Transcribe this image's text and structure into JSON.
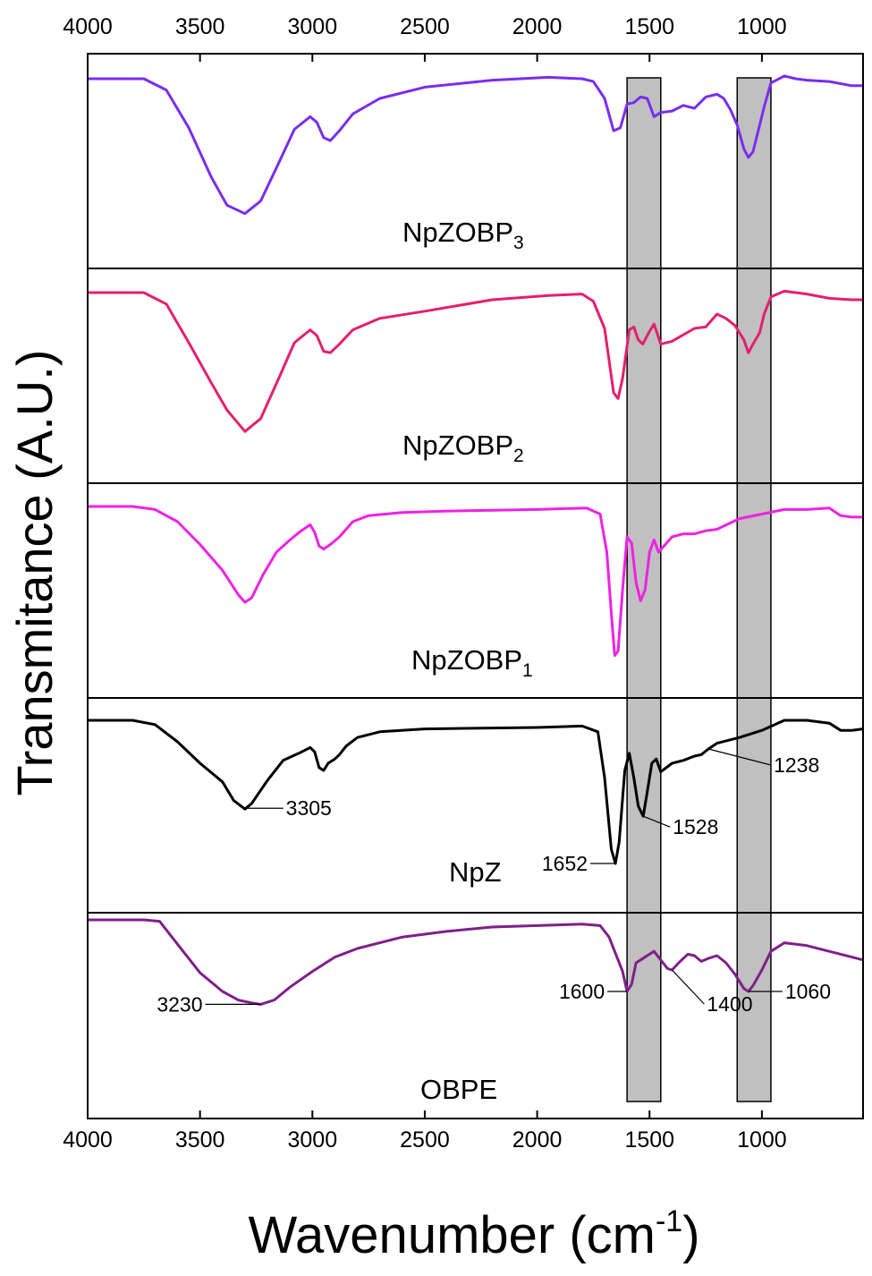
{
  "chart_data": {
    "type": "line",
    "title": "",
    "xlabel": "Wavenumber (cm",
    "xlabel_sup": "-1",
    "xlabel_close": ")",
    "ylabel": "Transmitance (A.U.)",
    "xlim": [
      4000,
      550
    ],
    "x_ticks": [
      4000,
      3500,
      3000,
      2500,
      2000,
      1500,
      1000
    ],
    "tick_labels": [
      "4000",
      "3500",
      "3000",
      "2500",
      "2000",
      "1500",
      "1000"
    ],
    "highlight_bands": [
      {
        "from": 1600,
        "to": 1450
      },
      {
        "from": 1110,
        "to": 960
      }
    ],
    "series": [
      {
        "name": "NpZOBP3",
        "label_main": "NpZOBP",
        "label_sub": "3",
        "color": "#7b2cf0",
        "points": [
          [
            4000,
            0.0
          ],
          [
            3750,
            0.0
          ],
          [
            3650,
            0.08
          ],
          [
            3550,
            0.35
          ],
          [
            3450,
            0.7
          ],
          [
            3380,
            0.9
          ],
          [
            3300,
            0.96
          ],
          [
            3230,
            0.87
          ],
          [
            3150,
            0.6
          ],
          [
            3080,
            0.36
          ],
          [
            3010,
            0.27
          ],
          [
            2980,
            0.31
          ],
          [
            2950,
            0.42
          ],
          [
            2920,
            0.44
          ],
          [
            2880,
            0.37
          ],
          [
            2820,
            0.25
          ],
          [
            2700,
            0.14
          ],
          [
            2500,
            0.06
          ],
          [
            2200,
            0.01
          ],
          [
            1950,
            -0.01
          ],
          [
            1800,
            0.0
          ],
          [
            1750,
            0.02
          ],
          [
            1700,
            0.14
          ],
          [
            1660,
            0.37
          ],
          [
            1630,
            0.35
          ],
          [
            1600,
            0.18
          ],
          [
            1570,
            0.17
          ],
          [
            1540,
            0.13
          ],
          [
            1510,
            0.14
          ],
          [
            1480,
            0.27
          ],
          [
            1450,
            0.24
          ],
          [
            1400,
            0.23
          ],
          [
            1350,
            0.19
          ],
          [
            1300,
            0.21
          ],
          [
            1250,
            0.13
          ],
          [
            1200,
            0.11
          ],
          [
            1170,
            0.14
          ],
          [
            1140,
            0.22
          ],
          [
            1110,
            0.33
          ],
          [
            1080,
            0.5
          ],
          [
            1060,
            0.56
          ],
          [
            1040,
            0.52
          ],
          [
            1010,
            0.33
          ],
          [
            990,
            0.2
          ],
          [
            960,
            0.03
          ],
          [
            900,
            -0.02
          ],
          [
            850,
            0.0
          ],
          [
            800,
            0.01
          ],
          [
            700,
            0.02
          ],
          [
            600,
            0.05
          ],
          [
            550,
            0.05
          ]
        ]
      },
      {
        "name": "NpZOBP2",
        "label_main": "NpZOBP",
        "label_sub": "2",
        "color": "#e41f70",
        "points": [
          [
            4000,
            0.0
          ],
          [
            3750,
            0.0
          ],
          [
            3650,
            0.08
          ],
          [
            3550,
            0.35
          ],
          [
            3450,
            0.63
          ],
          [
            3380,
            0.82
          ],
          [
            3300,
            0.97
          ],
          [
            3230,
            0.88
          ],
          [
            3150,
            0.6
          ],
          [
            3080,
            0.35
          ],
          [
            3010,
            0.26
          ],
          [
            2980,
            0.3
          ],
          [
            2950,
            0.41
          ],
          [
            2920,
            0.42
          ],
          [
            2880,
            0.36
          ],
          [
            2820,
            0.26
          ],
          [
            2700,
            0.18
          ],
          [
            2500,
            0.13
          ],
          [
            2200,
            0.05
          ],
          [
            1950,
            0.02
          ],
          [
            1800,
            0.01
          ],
          [
            1750,
            0.06
          ],
          [
            1700,
            0.25
          ],
          [
            1660,
            0.7
          ],
          [
            1640,
            0.74
          ],
          [
            1620,
            0.6
          ],
          [
            1590,
            0.26
          ],
          [
            1570,
            0.24
          ],
          [
            1550,
            0.33
          ],
          [
            1530,
            0.36
          ],
          [
            1500,
            0.27
          ],
          [
            1480,
            0.22
          ],
          [
            1450,
            0.36
          ],
          [
            1400,
            0.34
          ],
          [
            1300,
            0.25
          ],
          [
            1250,
            0.24
          ],
          [
            1200,
            0.15
          ],
          [
            1160,
            0.18
          ],
          [
            1120,
            0.23
          ],
          [
            1080,
            0.33
          ],
          [
            1060,
            0.42
          ],
          [
            1040,
            0.36
          ],
          [
            1010,
            0.28
          ],
          [
            990,
            0.15
          ],
          [
            960,
            0.03
          ],
          [
            900,
            -0.01
          ],
          [
            800,
            0.01
          ],
          [
            700,
            0.04
          ],
          [
            600,
            0.05
          ],
          [
            550,
            0.05
          ]
        ]
      },
      {
        "name": "NpZOBP1",
        "label_main": "NpZOBP",
        "label_sub": "1",
        "color": "#ee22e4",
        "points": [
          [
            4000,
            0.0
          ],
          [
            3800,
            0.0
          ],
          [
            3700,
            0.02
          ],
          [
            3600,
            0.1
          ],
          [
            3500,
            0.25
          ],
          [
            3400,
            0.42
          ],
          [
            3330,
            0.58
          ],
          [
            3300,
            0.63
          ],
          [
            3270,
            0.6
          ],
          [
            3220,
            0.45
          ],
          [
            3160,
            0.3
          ],
          [
            3100,
            0.22
          ],
          [
            3050,
            0.16
          ],
          [
            3010,
            0.12
          ],
          [
            2990,
            0.17
          ],
          [
            2970,
            0.26
          ],
          [
            2950,
            0.28
          ],
          [
            2920,
            0.25
          ],
          [
            2880,
            0.2
          ],
          [
            2820,
            0.1
          ],
          [
            2750,
            0.06
          ],
          [
            2600,
            0.04
          ],
          [
            2400,
            0.03
          ],
          [
            2000,
            0.02
          ],
          [
            1780,
            0.01
          ],
          [
            1720,
            0.05
          ],
          [
            1690,
            0.3
          ],
          [
            1670,
            0.7
          ],
          [
            1655,
            0.98
          ],
          [
            1640,
            0.95
          ],
          [
            1620,
            0.55
          ],
          [
            1600,
            0.2
          ],
          [
            1580,
            0.24
          ],
          [
            1560,
            0.5
          ],
          [
            1540,
            0.62
          ],
          [
            1520,
            0.55
          ],
          [
            1500,
            0.3
          ],
          [
            1480,
            0.22
          ],
          [
            1460,
            0.3
          ],
          [
            1430,
            0.25
          ],
          [
            1400,
            0.2
          ],
          [
            1350,
            0.18
          ],
          [
            1300,
            0.18
          ],
          [
            1250,
            0.16
          ],
          [
            1200,
            0.15
          ],
          [
            1100,
            0.08
          ],
          [
            1000,
            0.05
          ],
          [
            900,
            0.02
          ],
          [
            800,
            0.02
          ],
          [
            700,
            0.01
          ],
          [
            650,
            0.06
          ],
          [
            600,
            0.07
          ],
          [
            550,
            0.07
          ]
        ]
      },
      {
        "name": "NpZ",
        "label_main": "NpZ",
        "label_sub": "",
        "color": "#000000",
        "points": [
          [
            4000,
            0.0
          ],
          [
            3800,
            0.0
          ],
          [
            3700,
            0.03
          ],
          [
            3600,
            0.15
          ],
          [
            3500,
            0.3
          ],
          [
            3400,
            0.43
          ],
          [
            3350,
            0.56
          ],
          [
            3300,
            0.62
          ],
          [
            3270,
            0.58
          ],
          [
            3200,
            0.42
          ],
          [
            3130,
            0.28
          ],
          [
            3060,
            0.23
          ],
          [
            3010,
            0.19
          ],
          [
            2990,
            0.22
          ],
          [
            2970,
            0.33
          ],
          [
            2950,
            0.35
          ],
          [
            2930,
            0.3
          ],
          [
            2900,
            0.27
          ],
          [
            2880,
            0.24
          ],
          [
            2850,
            0.18
          ],
          [
            2800,
            0.12
          ],
          [
            2700,
            0.08
          ],
          [
            2500,
            0.06
          ],
          [
            2000,
            0.05
          ],
          [
            1800,
            0.04
          ],
          [
            1730,
            0.08
          ],
          [
            1700,
            0.4
          ],
          [
            1670,
            0.9
          ],
          [
            1652,
            1.0
          ],
          [
            1635,
            0.85
          ],
          [
            1610,
            0.35
          ],
          [
            1590,
            0.23
          ],
          [
            1570,
            0.4
          ],
          [
            1550,
            0.6
          ],
          [
            1528,
            0.67
          ],
          [
            1510,
            0.5
          ],
          [
            1490,
            0.3
          ],
          [
            1470,
            0.27
          ],
          [
            1450,
            0.36
          ],
          [
            1400,
            0.3
          ],
          [
            1350,
            0.28
          ],
          [
            1300,
            0.25
          ],
          [
            1270,
            0.24
          ],
          [
            1238,
            0.2
          ],
          [
            1200,
            0.16
          ],
          [
            1100,
            0.12
          ],
          [
            1000,
            0.07
          ],
          [
            900,
            0.0
          ],
          [
            800,
            0.0
          ],
          [
            700,
            0.02
          ],
          [
            650,
            0.07
          ],
          [
            600,
            0.07
          ],
          [
            550,
            0.06
          ]
        ]
      },
      {
        "name": "OBPE",
        "label_main": "OBPE",
        "label_sub": "",
        "color": "#801f8a",
        "points": [
          [
            4000,
            0.0
          ],
          [
            3750,
            0.0
          ],
          [
            3680,
            0.01
          ],
          [
            3600,
            0.17
          ],
          [
            3500,
            0.37
          ],
          [
            3400,
            0.5
          ],
          [
            3330,
            0.56
          ],
          [
            3270,
            0.58
          ],
          [
            3230,
            0.59
          ],
          [
            3170,
            0.56
          ],
          [
            3100,
            0.47
          ],
          [
            3000,
            0.36
          ],
          [
            2900,
            0.26
          ],
          [
            2800,
            0.2
          ],
          [
            2600,
            0.12
          ],
          [
            2400,
            0.08
          ],
          [
            2200,
            0.05
          ],
          [
            2000,
            0.04
          ],
          [
            1800,
            0.03
          ],
          [
            1720,
            0.04
          ],
          [
            1680,
            0.12
          ],
          [
            1640,
            0.28
          ],
          [
            1620,
            0.36
          ],
          [
            1600,
            0.5
          ],
          [
            1580,
            0.45
          ],
          [
            1560,
            0.3
          ],
          [
            1540,
            0.28
          ],
          [
            1510,
            0.25
          ],
          [
            1480,
            0.22
          ],
          [
            1450,
            0.28
          ],
          [
            1420,
            0.34
          ],
          [
            1400,
            0.35
          ],
          [
            1370,
            0.3
          ],
          [
            1330,
            0.24
          ],
          [
            1300,
            0.25
          ],
          [
            1270,
            0.29
          ],
          [
            1240,
            0.27
          ],
          [
            1200,
            0.25
          ],
          [
            1160,
            0.3
          ],
          [
            1120,
            0.38
          ],
          [
            1080,
            0.48
          ],
          [
            1060,
            0.5
          ],
          [
            1040,
            0.46
          ],
          [
            1000,
            0.35
          ],
          [
            960,
            0.22
          ],
          [
            900,
            0.16
          ],
          [
            800,
            0.18
          ],
          [
            700,
            0.22
          ],
          [
            600,
            0.26
          ],
          [
            550,
            0.28
          ]
        ]
      }
    ],
    "annotations": [
      {
        "series": "NpZ",
        "peak": 3305,
        "text": "3305"
      },
      {
        "series": "NpZ",
        "peak": 1652,
        "text": "1652"
      },
      {
        "series": "NpZ",
        "peak": 1528,
        "text": "1528"
      },
      {
        "series": "NpZ",
        "peak": 1238,
        "text": "1238"
      },
      {
        "series": "OBPE",
        "peak": 3230,
        "text": "3230"
      },
      {
        "series": "OBPE",
        "peak": 1600,
        "text": "1600"
      },
      {
        "series": "OBPE",
        "peak": 1400,
        "text": "1400"
      },
      {
        "series": "OBPE",
        "peak": 1060,
        "text": "1060"
      }
    ]
  }
}
